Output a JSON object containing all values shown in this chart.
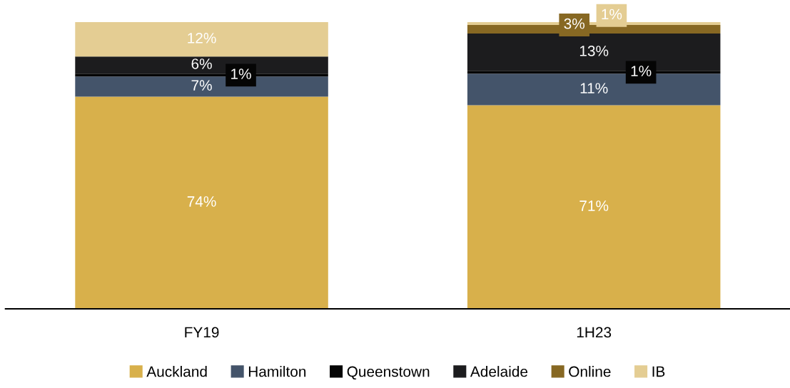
{
  "chart_data": {
    "type": "bar",
    "stacked": true,
    "categories": [
      "FY19",
      "1H23"
    ],
    "series": [
      {
        "name": "Auckland",
        "color": "#d8b04b",
        "values": [
          74,
          71
        ],
        "value_labels": [
          "74%",
          "71%"
        ]
      },
      {
        "name": "Hamilton",
        "color": "#44546a",
        "values": [
          7,
          11
        ],
        "value_labels": [
          "7%",
          "11%"
        ]
      },
      {
        "name": "Queenstown",
        "color": "#050505",
        "values": [
          1,
          1
        ],
        "value_labels": [
          "1%",
          "1%"
        ]
      },
      {
        "name": "Adelaide",
        "color": "#1c1c1e",
        "values": [
          6,
          13
        ],
        "value_labels": [
          "6%",
          "13%"
        ]
      },
      {
        "name": "Online",
        "color": "#876823",
        "values": [
          0,
          3
        ],
        "value_labels": [
          null,
          "3%"
        ]
      },
      {
        "name": "IB",
        "color": "#e4cd93",
        "values": [
          12,
          1
        ],
        "value_labels": [
          "12%",
          "1%"
        ]
      }
    ],
    "legend": "bottom",
    "grid": false
  }
}
